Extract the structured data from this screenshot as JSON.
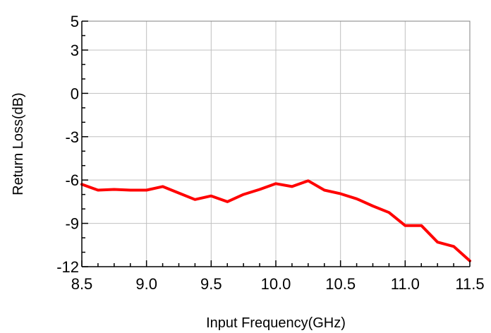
{
  "chart_data": {
    "type": "line",
    "title": "",
    "xlabel": "Input Frequency(GHz)",
    "ylabel": "Return Loss(dB)",
    "xlim": [
      8.5,
      11.5
    ],
    "ylim": [
      -12,
      5
    ],
    "x_ticks": [
      8.5,
      9.0,
      9.5,
      10.0,
      10.5,
      11.0,
      11.5
    ],
    "x_tick_labels": [
      "8.5",
      "9.0",
      "9.5",
      "10.0",
      "10.5",
      "11.0",
      "11.5"
    ],
    "y_ticks": [
      5,
      3,
      0,
      -3,
      -6,
      -9,
      -12
    ],
    "y_tick_labels": [
      "5",
      "3",
      "0",
      "-3",
      "-6",
      "-9",
      "-12"
    ],
    "y_grid": [
      5,
      3,
      0,
      -3,
      -6,
      -9,
      -12
    ],
    "grid": true,
    "legend": "none",
    "series": [
      {
        "color": "#ff0000",
        "x": [
          8.5,
          8.625,
          8.75,
          8.875,
          9.0,
          9.125,
          9.25,
          9.375,
          9.5,
          9.625,
          9.75,
          9.875,
          10.0,
          10.125,
          10.25,
          10.375,
          10.5,
          10.625,
          10.75,
          10.875,
          11.0,
          11.125,
          11.25,
          11.375,
          11.5
        ],
        "y": [
          -6.3,
          -6.7,
          -6.65,
          -6.7,
          -6.7,
          -6.45,
          -6.9,
          -7.35,
          -7.1,
          -7.5,
          -7.0,
          -6.65,
          -6.25,
          -6.45,
          -6.05,
          -6.7,
          -6.95,
          -7.3,
          -7.8,
          -8.25,
          -9.15,
          -9.15,
          -10.3,
          -10.6,
          -11.6
        ]
      }
    ]
  }
}
